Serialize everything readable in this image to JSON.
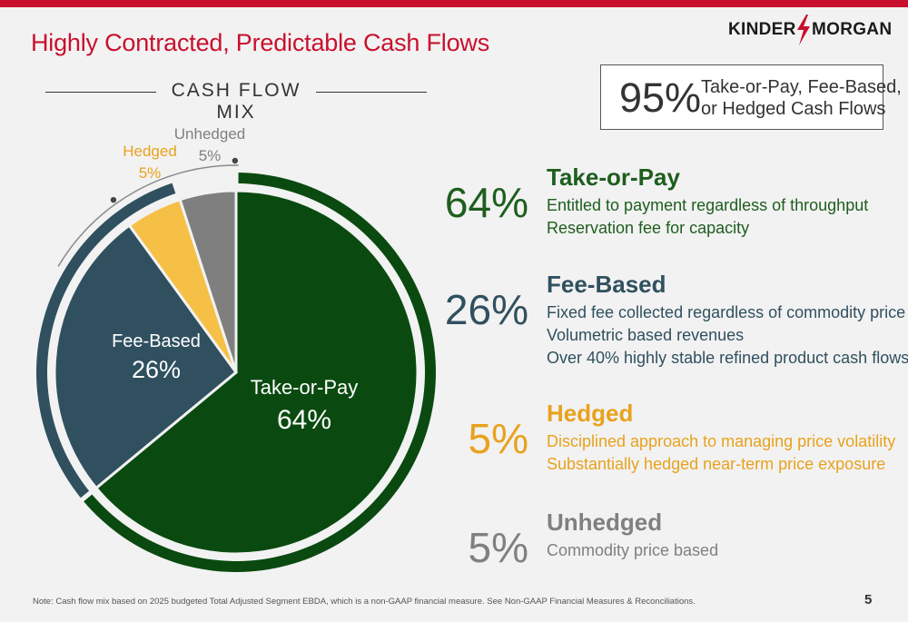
{
  "header": {
    "title": "Highly Contracted, Predictable Cash Flows",
    "logo_left": "KINDER",
    "logo_right": "MORGAN"
  },
  "section_title": "CASH FLOW MIX",
  "kpi": {
    "value": "95%",
    "line1": "Take-or-Pay, Fee-Based,",
    "line2": "or Hedged Cash Flows"
  },
  "chart_data": {
    "type": "pie",
    "title": "CASH FLOW MIX",
    "slices": [
      {
        "label": "Take-or-Pay",
        "value": 64,
        "pct_label": "64%",
        "color": "#0a4a10"
      },
      {
        "label": "Fee-Based",
        "value": 26,
        "pct_label": "26%",
        "color": "#30505f"
      },
      {
        "label": "Hedged",
        "value": 5,
        "pct_label": "5%",
        "color": "#f5c045"
      },
      {
        "label": "Unhedged",
        "value": 5,
        "pct_label": "5%",
        "color": "#7f7f7f"
      }
    ],
    "outer_rings": [
      {
        "covers": [
          "Take-or-Pay"
        ],
        "color": "#0a4a10"
      },
      {
        "covers": [
          "Fee-Based",
          "Hedged"
        ],
        "color": "#30505f"
      }
    ]
  },
  "categories": [
    {
      "pct": "64%",
      "title": "Take-or-Pay",
      "color": "#1e5e1e",
      "lines": [
        "Entitled to payment regardless of throughput",
        "Reservation fee for capacity"
      ]
    },
    {
      "pct": "26%",
      "title": "Fee-Based",
      "color": "#30505f",
      "lines": [
        "Fixed fee collected regardless of commodity price",
        "Volumetric based revenues",
        "Over 40% highly stable refined product cash flows"
      ]
    },
    {
      "pct": "5%",
      "title": "Hedged",
      "color": "#e8a21e",
      "lines": [
        "Disciplined approach to managing price volatility",
        "Substantially hedged near-term price exposure"
      ]
    },
    {
      "pct": "5%",
      "title": "Unhedged",
      "color": "#808080",
      "lines": [
        "Commodity price based"
      ]
    }
  ],
  "footer": {
    "note": "Note: Cash flow mix based on 2025 budgeted Total Adjusted Segment EBDA, which is a non-GAAP financial measure. See Non-GAAP Financial Measures & Reconciliations.",
    "page_number": "5"
  }
}
